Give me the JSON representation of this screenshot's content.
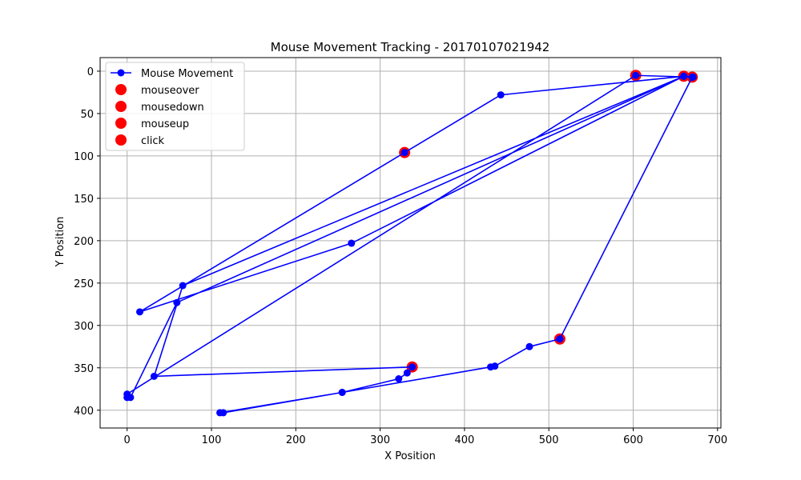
{
  "chart_data": {
    "type": "line",
    "title": "Mouse Movement Tracking - 20170107021942",
    "xlabel": "X Position",
    "ylabel": "Y Position",
    "xlim": [
      -32,
      704
    ],
    "ylim": [
      421,
      -16
    ],
    "y_inverted": true,
    "grid": true,
    "legend_position": "top-left",
    "xticks": [
      0,
      100,
      200,
      300,
      400,
      500,
      600,
      700
    ],
    "yticks": [
      0,
      50,
      100,
      150,
      200,
      250,
      300,
      350,
      400
    ],
    "series": [
      {
        "name": "Mouse Movement",
        "color": "#0000ff",
        "marker": "circle",
        "points": [
          [
            513,
            316
          ],
          [
            477,
            325
          ],
          [
            436,
            348
          ],
          [
            431,
            349
          ],
          [
            255,
            379
          ],
          [
            114,
            403
          ],
          [
            110,
            403
          ],
          [
            255,
            379
          ],
          [
            322,
            363
          ],
          [
            332,
            356
          ],
          [
            338,
            349
          ],
          [
            32,
            360
          ],
          [
            66,
            253
          ],
          [
            660,
            6
          ],
          [
            671,
            7
          ],
          [
            670,
            7
          ],
          [
            603,
            5
          ],
          [
            0,
            381
          ],
          [
            0,
            385
          ],
          [
            4,
            385
          ],
          [
            59,
            273
          ],
          [
            660,
            6
          ],
          [
            443,
            28
          ],
          [
            329,
            96
          ],
          [
            15,
            284
          ],
          [
            266,
            203
          ],
          [
            660,
            6
          ],
          [
            670,
            7
          ],
          [
            513,
            316
          ]
        ]
      },
      {
        "name": "mouseover",
        "color": "#ff0000",
        "marker": "circle",
        "points": [
          [
            513,
            316
          ],
          [
            338,
            349
          ],
          [
            329,
            96
          ],
          [
            603,
            5
          ],
          [
            660,
            6
          ],
          [
            670,
            7
          ]
        ]
      },
      {
        "name": "mousedown",
        "color": "#ff0000",
        "marker": "circle",
        "points": []
      },
      {
        "name": "mouseup",
        "color": "#ff0000",
        "marker": "circle",
        "points": []
      },
      {
        "name": "click",
        "color": "#ff0000",
        "marker": "circle",
        "points": []
      }
    ]
  }
}
